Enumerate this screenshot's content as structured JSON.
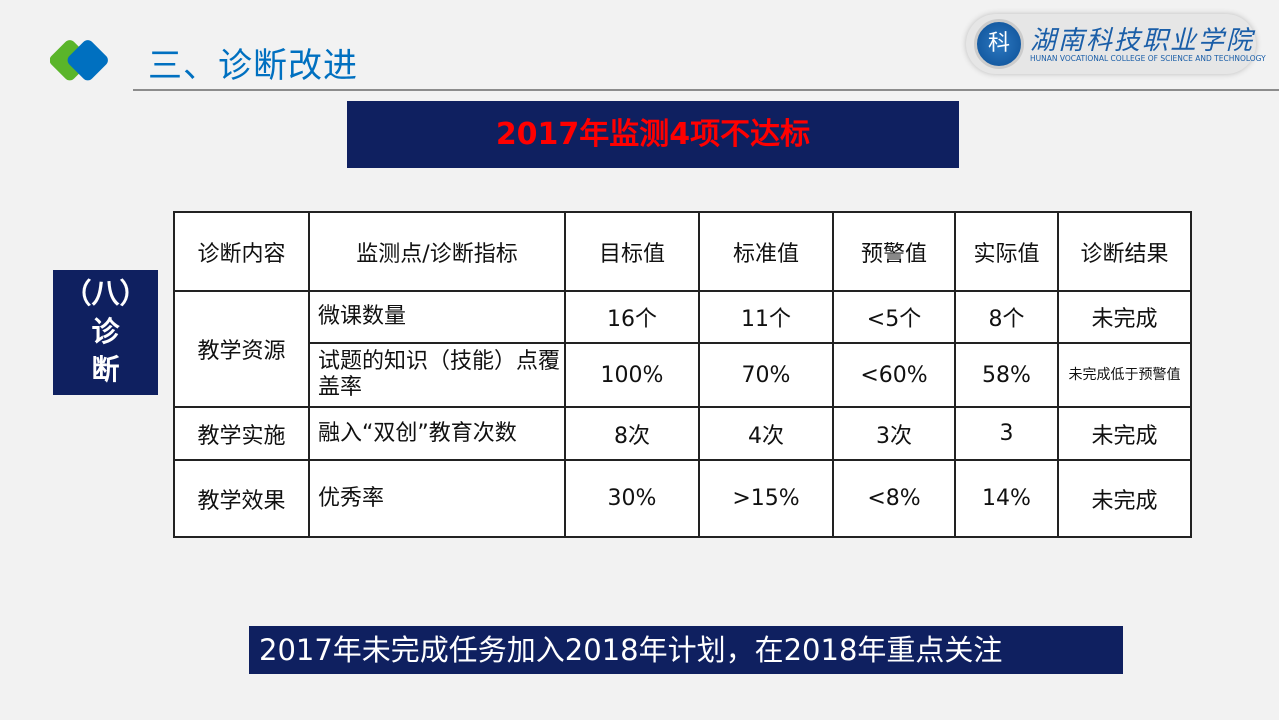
{
  "header": {
    "title": "三、诊断改进",
    "college_cn": "湖南科技职业学院",
    "college_en": "HUNAN VOCATIONAL COLLEGE OF SCIENCE AND TECHNOLOGY"
  },
  "banner": "2017年监测4项不达标",
  "side_label": [
    "（八）",
    "诊",
    "断"
  ],
  "table": {
    "headers": [
      "诊断内容",
      "监测点/诊断指标",
      "目标值",
      "标准值",
      "预警值",
      "实际值",
      "诊断结果"
    ],
    "rows": [
      {
        "category": "教学资源",
        "indicator": "微课数量",
        "target": "16个",
        "standard": "11个",
        "warning": "<5个",
        "actual": "8个",
        "result": "未完成"
      },
      {
        "category": "",
        "indicator": "试题的知识（技能）点覆盖率",
        "target": "100%",
        "standard": "70%",
        "warning": "<60%",
        "actual": "58%",
        "result": "未完成低于预警值"
      },
      {
        "category": "教学实施",
        "indicator": "融入“双创”教育次数",
        "target": "8次",
        "standard": "4次",
        "warning": "3次",
        "actual": "3",
        "result": "未完成"
      },
      {
        "category": "教学效果",
        "indicator": "优秀率",
        "target": "30%",
        "standard": ">15%",
        "warning": "<8%",
        "actual": "14%",
        "result": "未完成"
      }
    ]
  },
  "footer": "2017年未完成任务加入2018年计划，在2018年重点关注",
  "colors": {
    "navy": "#0f2060",
    "red": "#ff0000",
    "blue": "#0070c0",
    "green": "#5ab52a"
  }
}
